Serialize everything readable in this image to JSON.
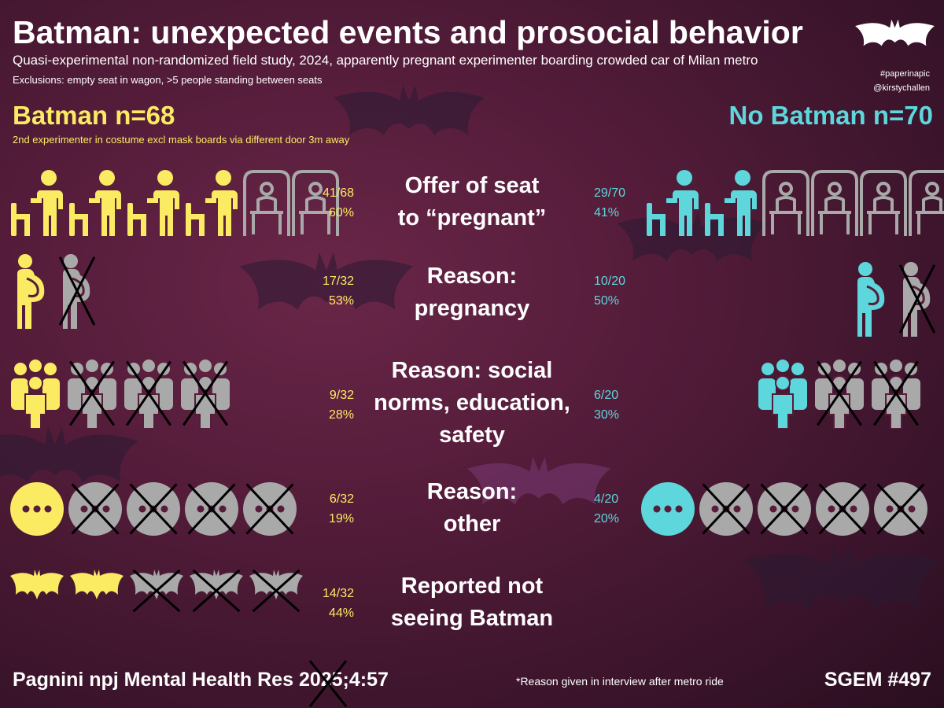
{
  "title": "Batman: unexpected events and prosocial behavior",
  "subtitle": "Quasi-experimental non-randomized field study, 2024, apparently pregnant experimenter boarding crowded car of Milan metro",
  "exclusions": "Exclusions: empty seat in wagon, >5 people standing between seats",
  "hashtag": "#paperinapic",
  "handle": "@kirstychallen",
  "groups": {
    "batman": {
      "header": "Batman n=68",
      "note": "2nd experimenter in costume excl mask boards via different door 3m away",
      "color": "#fbeb63"
    },
    "no_batman": {
      "header": "No Batman n=70",
      "color": "#5dd6dc"
    }
  },
  "inactive_color": "#a9a9a9",
  "rows": [
    {
      "label_line1": "Offer of seat",
      "label_line2": "to “pregnant”",
      "icon": "person-offering-seat-icon",
      "batman": {
        "fraction": "41/68",
        "percent": "60%",
        "proportion": 0.6
      },
      "no_batman": {
        "fraction": "29/70",
        "percent": "41%",
        "proportion": 0.41
      }
    },
    {
      "label_line1": "Reason:",
      "label_line2": "pregnancy",
      "icon": "pregnant-woman-icon",
      "batman": {
        "fraction": "17/32",
        "percent": "53%",
        "proportion": 0.53
      },
      "no_batman": {
        "fraction": "10/20",
        "percent": "50%",
        "proportion": 0.5
      }
    },
    {
      "label_line1": "Reason: social",
      "label_line2": "norms, education,",
      "label_line3": "safety",
      "icon": "group-of-people-icon",
      "batman": {
        "fraction": "9/32",
        "percent": "28%",
        "proportion": 0.28
      },
      "no_batman": {
        "fraction": "6/20",
        "percent": "30%",
        "proportion": 0.3
      }
    },
    {
      "label_line1": "Reason:",
      "label_line2": "other",
      "icon": "ellipsis-circle-icon",
      "batman": {
        "fraction": "6/32",
        "percent": "19%",
        "proportion": 0.19
      },
      "no_batman": {
        "fraction": "4/20",
        "percent": "20%",
        "proportion": 0.2
      }
    },
    {
      "label_line1": "Reported not",
      "label_line2": "seeing Batman",
      "icon": "bat-icon",
      "batman": {
        "fraction": "14/32",
        "percent": "44%",
        "proportion": 0.44
      }
    }
  ],
  "citation": "Pagnini npj Mental Health Res 2025;4:57",
  "footnote": "*Reason given in interview after metro ride",
  "episode": "SGEM #497"
}
